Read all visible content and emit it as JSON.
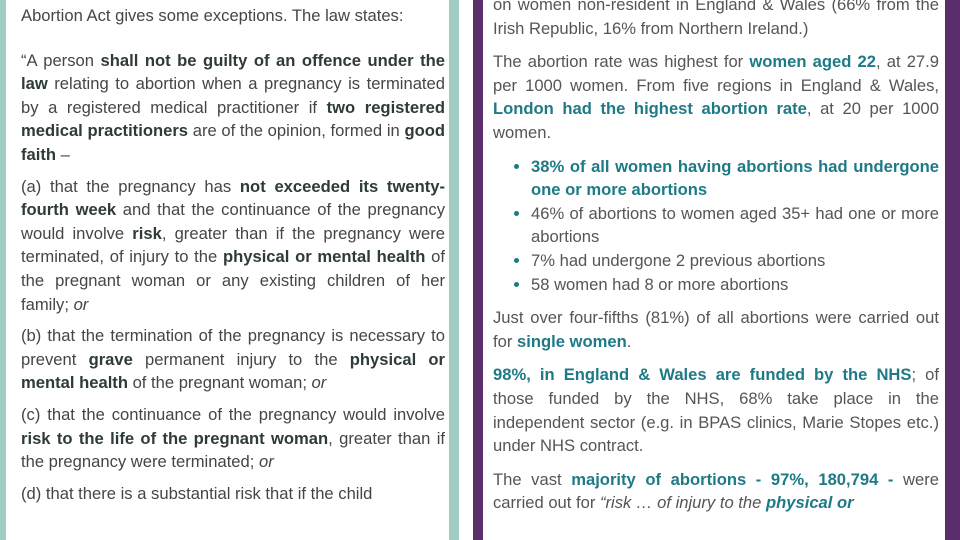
{
  "left": {
    "intro": "Abortion Act gives some exceptions. The law states:",
    "quote": {
      "t1": "“A person ",
      "b1": "shall not be guilty of an offence under the law",
      "t2": " relating to abortion when a pregnancy is terminated by a registered medical practitioner if ",
      "b2": "two registered medical practitioners",
      "t3": " are of the opinion, formed in ",
      "b3": "good faith",
      "t4": " –"
    },
    "a": {
      "t1": "(a) that the pregnancy has ",
      "b1": "not exceeded its twenty-fourth week",
      "t2": " and that the continuance of the pregnancy would involve ",
      "b2": "risk",
      "t3": ", greater than if the pregnancy were terminated, of injury to the ",
      "b3": "physical or mental health",
      "t4": " of the pregnant woman or any existing children of her family; ",
      "i1": "or"
    },
    "b": {
      "t1": "(b) that the termination of the pregnancy is necessary to prevent ",
      "b1": "grave",
      "t2": " permanent injury to the ",
      "b2": "physical or mental health",
      "t3": " of the pregnant woman; ",
      "i1": "or"
    },
    "c": {
      "t1": "(c) that the continuance of the pregnancy would involve ",
      "b1": "risk to the life of the pregnant woman",
      "t2": ", greater than if the pregnancy were terminated; ",
      "i1": "or"
    },
    "d": {
      "t1": "(d) that there is a substantial risk that if the child"
    }
  },
  "right": {
    "p0": "on women non-resident in England & Wales (66% from the Irish Republic, 16% from Northern Ireland.)",
    "p1": {
      "t1": "The abortion rate was highest for ",
      "b1": "women aged 22",
      "t2": ", at 27.9 per 1000 women. From five regions in England & Wales, ",
      "b2": "London had the highest abortion rate",
      "t3": ", at 20 per 1000 women."
    },
    "bullets": {
      "b1": "38% of all women having abortions had undergone one or more abortions",
      "i2": "46% of abortions to women aged 35+ had one or more abortions",
      "i3": "7% had undergone 2 previous abortions",
      "i4": "58 women had 8 or more abortions"
    },
    "p2": {
      "t1": "Just over four-fifths (81%) of all abortions were carried out for ",
      "b1": "single women",
      "t2": "."
    },
    "p3": {
      "b1": "98%, in England & Wales are funded by the NHS",
      "t1": "; of those funded by the NHS, 68% take place in the independent sector (e.g. in BPAS clinics, Marie Stopes etc.) under NHS contract."
    },
    "p4": {
      "t1": "The vast ",
      "b1": "majority of abortions - 97%, 180,794 -",
      "t2": " were carried out for ",
      "i1": "“risk … of injury to the ",
      "b2": "physical or"
    }
  },
  "colors": {
    "left_border": "#9fcdc4",
    "right_border": "#5a2e6b",
    "highlight_teal": "#1e7a86",
    "bold_dark": "#2f3a3a"
  }
}
